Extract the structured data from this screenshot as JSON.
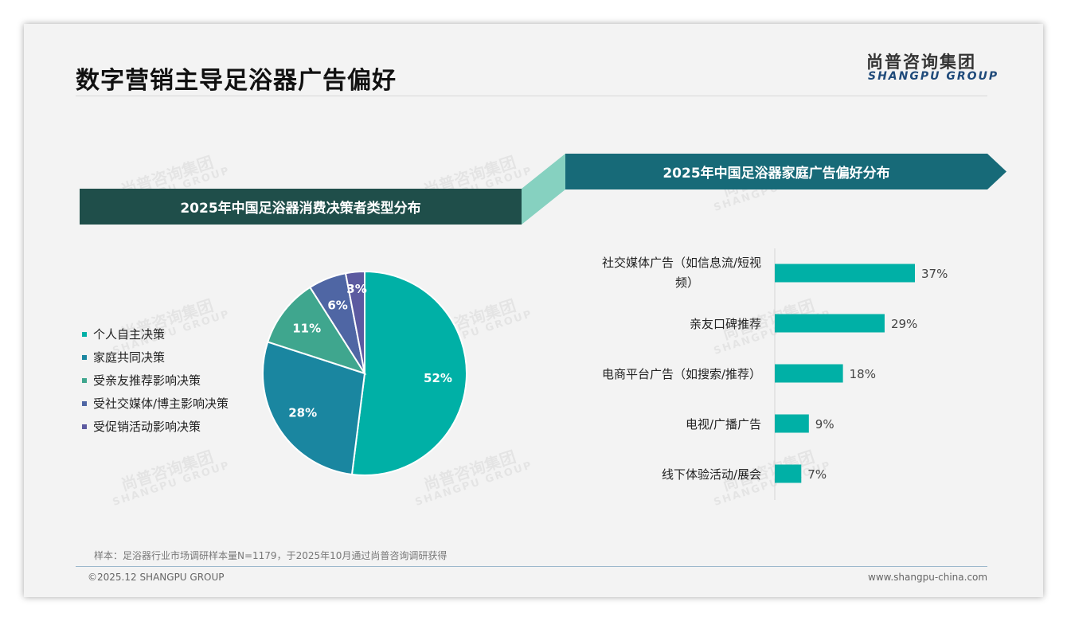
{
  "title": "数字营销主导足浴器广告偏好",
  "logo": {
    "cn": "尚普咨询集团",
    "en": "SHANGPU GROUP"
  },
  "watermark": {
    "cn": "尚普咨询集团",
    "en": "SHANGPU GROUP"
  },
  "footer": {
    "note": "样本：足浴器行业市场调研样本量N=1179，于2025年10月通过尚普咨询调研获得",
    "copyright": "©2025.12 SHANGPU GROUP",
    "url": "www.shangpu-china.com"
  },
  "chart_data": [
    {
      "type": "pie",
      "title": "2025年中国足浴器消费决策者类型分布",
      "legend_position": "left",
      "labels": [
        "个人自主决策",
        "家庭共同决策",
        "受亲友推荐影响决策",
        "受社交媒体/博主影响决策",
        "受促销活动影响决策"
      ],
      "values": [
        52,
        28,
        11,
        6,
        3
      ],
      "data_labels": [
        "52%",
        "28%",
        "11%",
        "6%",
        "3%"
      ],
      "colors": [
        "#00b0a6",
        "#1a86a0",
        "#3fa68e",
        "#4f66a4",
        "#5c5aa0"
      ]
    },
    {
      "type": "bar",
      "orientation": "horizontal",
      "title": "2025年中国足浴器家庭广告偏好分布",
      "categories": [
        "社交媒体广告（如信息流/短视频）",
        "亲友口碑推荐",
        "电商平台广告（如搜索/推荐）",
        "电视/广播广告",
        "线下体验活动/展会"
      ],
      "values": [
        37,
        29,
        18,
        9,
        7
      ],
      "data_labels": [
        "37%",
        "29%",
        "18%",
        "9%",
        "7%"
      ],
      "color": "#00b0a6",
      "xlim": [
        0,
        40
      ]
    }
  ]
}
